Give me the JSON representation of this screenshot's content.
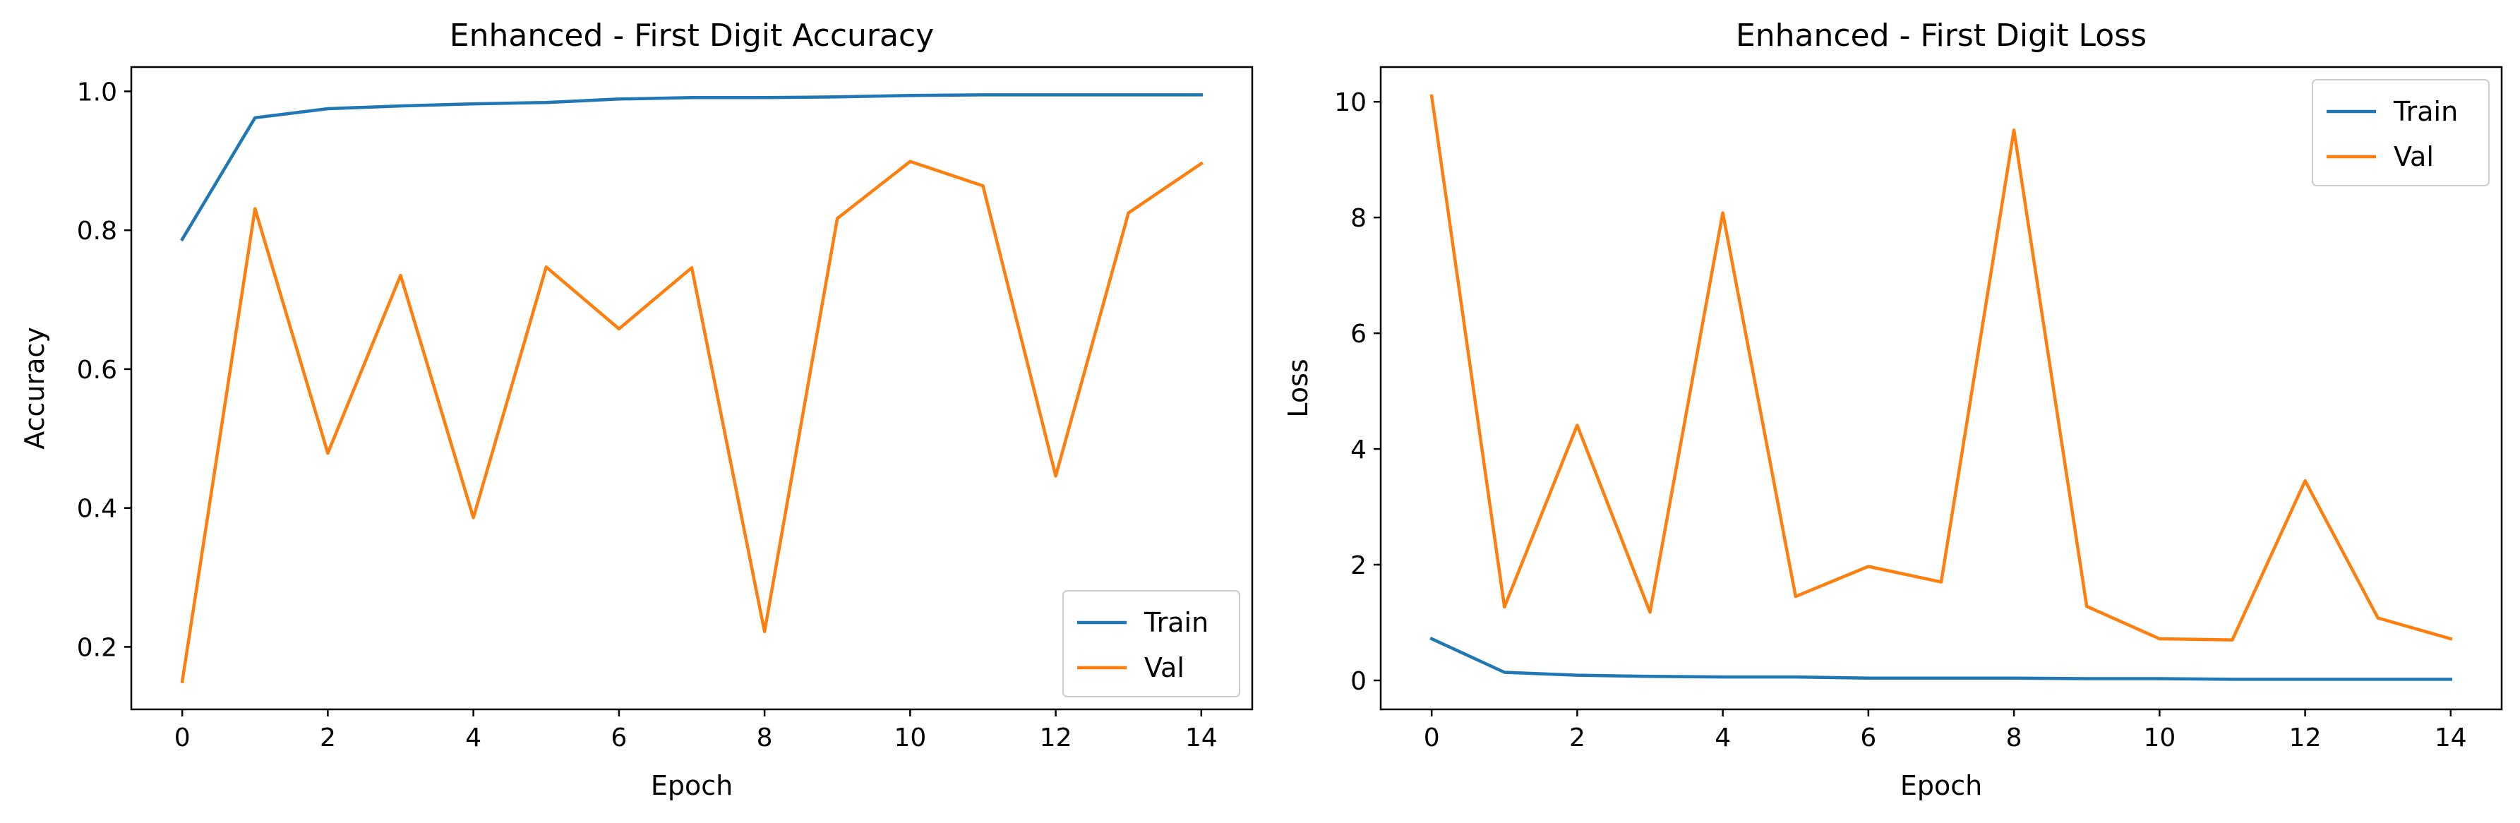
{
  "chart_data": [
    {
      "type": "line",
      "title": "Enhanced - First Digit Accuracy",
      "xlabel": "Epoch",
      "ylabel": "Accuracy",
      "xlim": [
        -0.7,
        14.7
      ],
      "ylim": [
        0.11,
        1.035
      ],
      "xticks": [
        0,
        2,
        4,
        6,
        8,
        10,
        12,
        14
      ],
      "yticks": [
        0.2,
        0.4,
        0.6,
        0.8,
        1.0
      ],
      "ytick_labels": [
        "0.2",
        "0.4",
        "0.6",
        "0.8",
        "1.0"
      ],
      "grid": false,
      "legend_position": "lower-right",
      "x": [
        0,
        1,
        2,
        3,
        4,
        5,
        6,
        7,
        8,
        9,
        10,
        11,
        12,
        13,
        14
      ],
      "series": [
        {
          "name": "Train",
          "color": "#1f77b4",
          "values": [
            0.787,
            0.962,
            0.975,
            0.979,
            0.982,
            0.984,
            0.989,
            0.991,
            0.991,
            0.992,
            0.994,
            0.995,
            0.995,
            0.995,
            0.995
          ]
        },
        {
          "name": "Val",
          "color": "#ff7f0e",
          "values": [
            0.15,
            0.831,
            0.479,
            0.735,
            0.386,
            0.747,
            0.658,
            0.746,
            0.222,
            0.817,
            0.899,
            0.864,
            0.446,
            0.825,
            0.896
          ]
        }
      ]
    },
    {
      "type": "line",
      "title": "Enhanced - First Digit Loss",
      "xlabel": "Epoch",
      "ylabel": "Loss",
      "xlim": [
        -0.7,
        14.7
      ],
      "ylim": [
        -0.5,
        10.6
      ],
      "xticks": [
        0,
        2,
        4,
        6,
        8,
        10,
        12,
        14
      ],
      "yticks": [
        0,
        2,
        4,
        6,
        8,
        10
      ],
      "ytick_labels": [
        "0",
        "2",
        "4",
        "6",
        "8",
        "10"
      ],
      "grid": false,
      "legend_position": "upper-right",
      "x": [
        0,
        1,
        2,
        3,
        4,
        5,
        6,
        7,
        8,
        9,
        10,
        11,
        12,
        13,
        14
      ],
      "series": [
        {
          "name": "Train",
          "color": "#1f77b4",
          "values": [
            0.72,
            0.14,
            0.09,
            0.07,
            0.06,
            0.06,
            0.04,
            0.04,
            0.04,
            0.03,
            0.03,
            0.02,
            0.02,
            0.02,
            0.02
          ]
        },
        {
          "name": "Val",
          "color": "#ff7f0e",
          "values": [
            10.1,
            1.27,
            4.41,
            1.18,
            8.08,
            1.45,
            1.97,
            1.7,
            9.51,
            1.28,
            0.72,
            0.7,
            3.45,
            1.08,
            0.72
          ]
        }
      ]
    }
  ]
}
